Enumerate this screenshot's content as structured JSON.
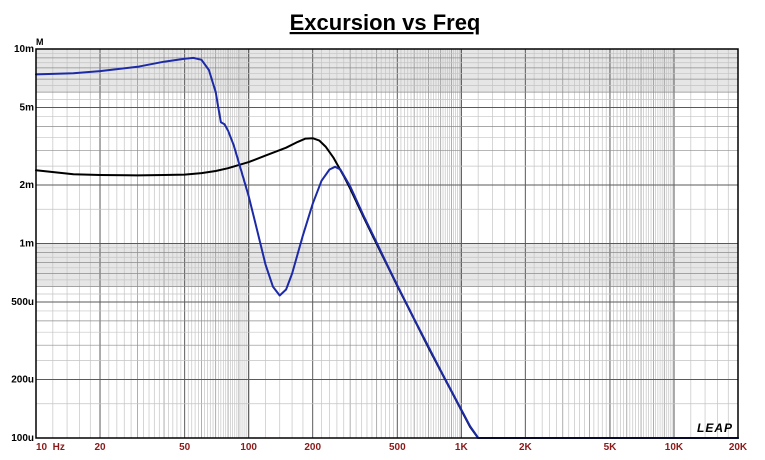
{
  "chart_data": {
    "type": "line",
    "title": "Excursion vs Freq",
    "yunit": "M",
    "brand": "LEAP",
    "x_scale": "log",
    "y_scale": "log",
    "xlim": [
      10,
      20000
    ],
    "ylim": [
      0.0001,
      0.01
    ],
    "x_ticks": [
      {
        "v": 10,
        "label": "10  Hz"
      },
      {
        "v": 20,
        "label": "20"
      },
      {
        "v": 50,
        "label": "50"
      },
      {
        "v": 100,
        "label": "100"
      },
      {
        "v": 200,
        "label": "200"
      },
      {
        "v": 500,
        "label": "500"
      },
      {
        "v": 1000,
        "label": "1K"
      },
      {
        "v": 2000,
        "label": "2K"
      },
      {
        "v": 5000,
        "label": "5K"
      },
      {
        "v": 10000,
        "label": "10K"
      },
      {
        "v": 20000,
        "label": "20K"
      }
    ],
    "y_ticks": [
      {
        "v": 0.01,
        "label": "10m"
      },
      {
        "v": 0.005,
        "label": "5m"
      },
      {
        "v": 0.002,
        "label": "2m"
      },
      {
        "v": 0.001,
        "label": "1m"
      },
      {
        "v": 0.0005,
        "label": "500u"
      },
      {
        "v": 0.0002,
        "label": "200u"
      },
      {
        "v": 0.0001,
        "label": "100u"
      }
    ],
    "grid": true,
    "series": [
      {
        "color": "#000000",
        "points": [
          [
            10,
            0.00238
          ],
          [
            15,
            0.00227
          ],
          [
            20,
            0.00225
          ],
          [
            30,
            0.00224
          ],
          [
            40,
            0.00225
          ],
          [
            50,
            0.00226
          ],
          [
            60,
            0.0023
          ],
          [
            70,
            0.00236
          ],
          [
            80,
            0.00244
          ],
          [
            100,
            0.00262
          ],
          [
            120,
            0.00283
          ],
          [
            150,
            0.00311
          ],
          [
            170,
            0.00333
          ],
          [
            185,
            0.00346
          ],
          [
            200,
            0.00348
          ],
          [
            215,
            0.00338
          ],
          [
            230,
            0.00315
          ],
          [
            250,
            0.00277
          ],
          [
            280,
            0.00222
          ],
          [
            300,
            0.00192
          ],
          [
            350,
            0.00134
          ],
          [
            400,
            0.000993
          ],
          [
            450,
            0.000765
          ],
          [
            500,
            0.000605
          ],
          [
            600,
            0.000409
          ],
          [
            700,
            0.000292
          ],
          [
            800,
            0.000221
          ],
          [
            900,
            0.000173
          ],
          [
            1000,
            0.000139
          ],
          [
            1100,
            0.000114
          ],
          [
            1200,
            0.0001
          ],
          [
            2000,
            0.0001
          ],
          [
            5000,
            0.0001
          ],
          [
            10000,
            0.0001
          ],
          [
            20000,
            0.0001
          ]
        ]
      },
      {
        "color": "#1c2aa8",
        "points": [
          [
            10,
            0.0074
          ],
          [
            15,
            0.0075
          ],
          [
            20,
            0.0077
          ],
          [
            30,
            0.0081
          ],
          [
            40,
            0.0086
          ],
          [
            50,
            0.0089
          ],
          [
            55,
            0.009
          ],
          [
            60,
            0.0088
          ],
          [
            65,
            0.0078
          ],
          [
            70,
            0.006
          ],
          [
            72,
            0.005
          ],
          [
            74,
            0.0042
          ],
          [
            77,
            0.0041
          ],
          [
            80,
            0.0038
          ],
          [
            85,
            0.0032
          ],
          [
            90,
            0.0026
          ],
          [
            100,
            0.00175
          ],
          [
            110,
            0.00115
          ],
          [
            120,
            0.00078
          ],
          [
            130,
            0.0006
          ],
          [
            140,
            0.00054
          ],
          [
            150,
            0.00058
          ],
          [
            160,
            0.0007
          ],
          [
            180,
            0.0011
          ],
          [
            200,
            0.0016
          ],
          [
            220,
            0.0021
          ],
          [
            240,
            0.0024
          ],
          [
            255,
            0.00248
          ],
          [
            270,
            0.0024
          ],
          [
            300,
            0.00197
          ],
          [
            350,
            0.00136
          ],
          [
            400,
            0.00101
          ],
          [
            450,
            0.00077
          ],
          [
            500,
            0.00061
          ],
          [
            600,
            0.00041
          ],
          [
            700,
            0.000295
          ],
          [
            800,
            0.000222
          ],
          [
            900,
            0.000174
          ],
          [
            1000,
            0.00014
          ],
          [
            1100,
            0.000115
          ],
          [
            1200,
            0.0001
          ],
          [
            2000,
            0.0001
          ],
          [
            5000,
            0.0001
          ],
          [
            10000,
            0.0001
          ],
          [
            20000,
            0.0001
          ]
        ]
      }
    ]
  }
}
